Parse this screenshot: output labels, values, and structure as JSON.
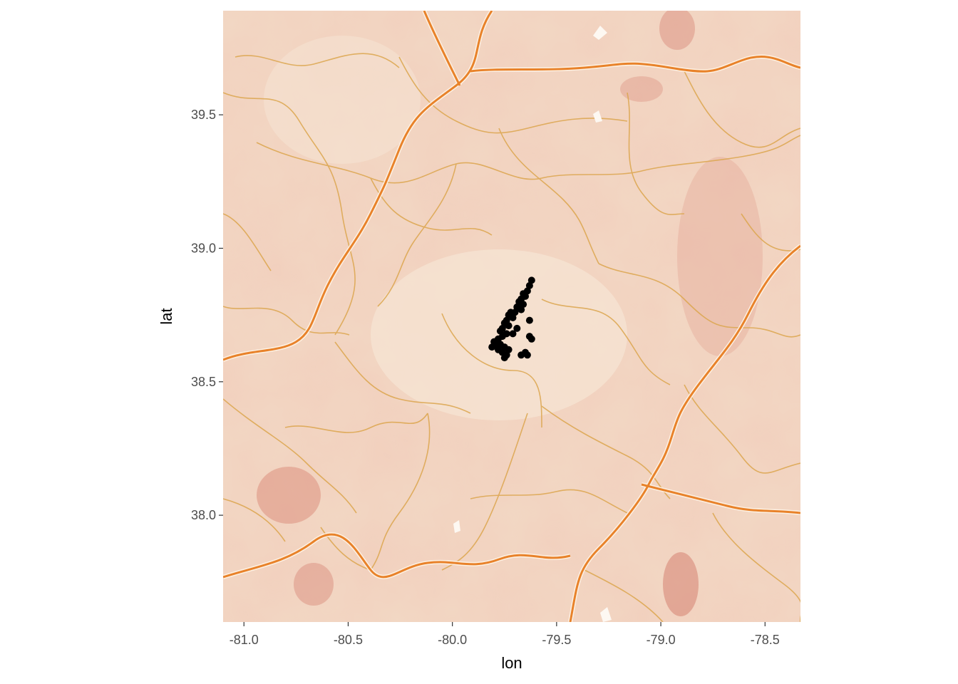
{
  "chart_data": {
    "type": "scatter",
    "basemap": "watercolor terrain map with roads",
    "xlabel": "lon",
    "ylabel": "lat",
    "xlim": [
      -81.1,
      -78.33
    ],
    "ylim": [
      37.6,
      39.89
    ],
    "xticks": [
      -81.0,
      -80.5,
      -80.0,
      -79.5,
      -79.0,
      -78.5
    ],
    "xtick_labels": [
      "-81.0",
      "-80.5",
      "-80.0",
      "-79.5",
      "-79.0",
      "-78.5"
    ],
    "yticks": [
      38.0,
      38.5,
      39.0,
      39.5
    ],
    "ytick_labels": [
      "38.0",
      "38.5",
      "39.0",
      "39.5"
    ],
    "grid": false,
    "point_color": "#000000",
    "map_colors": {
      "paper": "#f2d8c4",
      "road_major": "#e8822a",
      "road_minor": "#dca64e",
      "wash": "#e0a08a"
    },
    "points": [
      {
        "x": -79.62,
        "y": 38.88
      },
      {
        "x": -79.63,
        "y": 38.86
      },
      {
        "x": -79.64,
        "y": 38.84
      },
      {
        "x": -79.66,
        "y": 38.83
      },
      {
        "x": -79.65,
        "y": 38.82
      },
      {
        "x": -79.67,
        "y": 38.81
      },
      {
        "x": -79.68,
        "y": 38.8
      },
      {
        "x": -79.66,
        "y": 38.79
      },
      {
        "x": -79.69,
        "y": 38.78
      },
      {
        "x": -79.67,
        "y": 38.77
      },
      {
        "x": -79.7,
        "y": 38.76
      },
      {
        "x": -79.72,
        "y": 38.76
      },
      {
        "x": -79.73,
        "y": 38.75
      },
      {
        "x": -79.71,
        "y": 38.74
      },
      {
        "x": -79.74,
        "y": 38.73
      },
      {
        "x": -79.75,
        "y": 38.72
      },
      {
        "x": -79.73,
        "y": 38.71
      },
      {
        "x": -79.76,
        "y": 38.7
      },
      {
        "x": -79.77,
        "y": 38.69
      },
      {
        "x": -79.74,
        "y": 38.68
      },
      {
        "x": -79.76,
        "y": 38.67
      },
      {
        "x": -79.78,
        "y": 38.66
      },
      {
        "x": -79.8,
        "y": 38.65
      },
      {
        "x": -79.79,
        "y": 38.64
      },
      {
        "x": -79.81,
        "y": 38.63
      },
      {
        "x": -79.77,
        "y": 38.64
      },
      {
        "x": -79.75,
        "y": 38.63
      },
      {
        "x": -79.73,
        "y": 38.62
      },
      {
        "x": -79.76,
        "y": 38.61
      },
      {
        "x": -79.74,
        "y": 38.6
      },
      {
        "x": -79.75,
        "y": 38.59
      },
      {
        "x": -79.78,
        "y": 38.62
      },
      {
        "x": -79.63,
        "y": 38.67
      },
      {
        "x": -79.62,
        "y": 38.66
      },
      {
        "x": -79.63,
        "y": 38.73
      },
      {
        "x": -79.65,
        "y": 38.61
      },
      {
        "x": -79.67,
        "y": 38.6
      },
      {
        "x": -79.64,
        "y": 38.6
      },
      {
        "x": -79.69,
        "y": 38.7
      },
      {
        "x": -79.71,
        "y": 38.68
      }
    ]
  }
}
